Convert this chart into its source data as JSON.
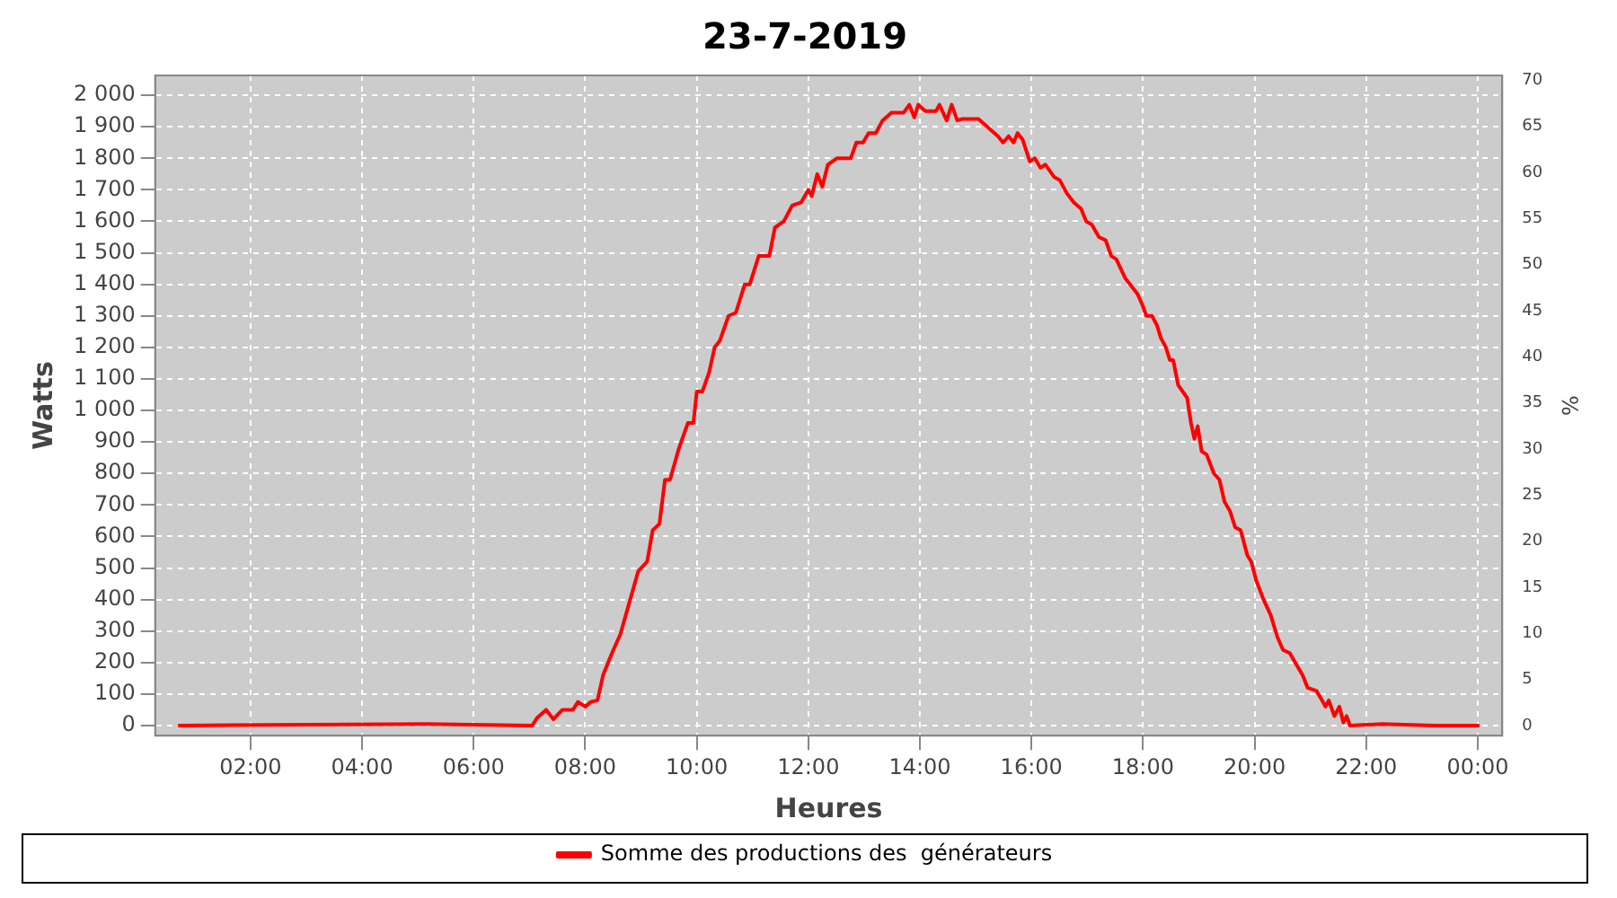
{
  "chart_data": {
    "type": "line",
    "title": "23-7-2019",
    "xlabel": "Heures",
    "ylabel": "Watts",
    "y2label": "%",
    "xlim": [
      0.29,
      24.44
    ],
    "xticks": [
      {
        "value": 2,
        "label": "02:00"
      },
      {
        "value": 4,
        "label": "04:00"
      },
      {
        "value": 6,
        "label": "06:00"
      },
      {
        "value": 8,
        "label": "08:00"
      },
      {
        "value": 10,
        "label": "10:00"
      },
      {
        "value": 12,
        "label": "12:00"
      },
      {
        "value": 14,
        "label": "14:00"
      },
      {
        "value": 16,
        "label": "16:00"
      },
      {
        "value": 18,
        "label": "18:00"
      },
      {
        "value": 20,
        "label": "20:00"
      },
      {
        "value": 22,
        "label": "22:00"
      },
      {
        "value": 24,
        "label": "00:00"
      }
    ],
    "ylim": [
      -32,
      2063
    ],
    "yticks": [
      0,
      100,
      200,
      300,
      400,
      500,
      600,
      700,
      800,
      900,
      {
        "value": 1000,
        "label": "1 000"
      },
      {
        "value": 1100,
        "label": "1 100"
      },
      {
        "value": 1200,
        "label": "1 200"
      },
      {
        "value": 1300,
        "label": "1 300"
      },
      {
        "value": 1400,
        "label": "1 400"
      },
      {
        "value": 1500,
        "label": "1 500"
      },
      {
        "value": 1600,
        "label": "1 600"
      },
      {
        "value": 1700,
        "label": "1 700"
      },
      {
        "value": 1800,
        "label": "1 800"
      },
      {
        "value": 1900,
        "label": "1 900"
      },
      {
        "value": 2000,
        "label": "2 000"
      }
    ],
    "y2lim": [
      -1.1,
      70.5
    ],
    "y2ticks": [
      0,
      5,
      10,
      15,
      20,
      25,
      30,
      35,
      40,
      45,
      50,
      55,
      60,
      65,
      70
    ],
    "grid": true,
    "legend": "bottom",
    "marker": "none",
    "line_style": "solid",
    "series": [
      {
        "name": "Somme des productions des  générateurs",
        "color": "#ff0000",
        "x": [
          0.7,
          5.14,
          7.05,
          7.14,
          7.3,
          7.43,
          7.59,
          7.78,
          7.87,
          8.0,
          8.1,
          8.22,
          8.32,
          8.48,
          8.63,
          8.79,
          8.95,
          9.11,
          9.21,
          9.33,
          9.43,
          9.52,
          9.68,
          9.84,
          9.94,
          10.0,
          10.1,
          10.22,
          10.32,
          10.41,
          10.57,
          10.7,
          10.86,
          10.95,
          11.11,
          11.3,
          11.4,
          11.56,
          11.71,
          11.87,
          12.0,
          12.06,
          12.16,
          12.25,
          12.35,
          12.51,
          12.76,
          12.86,
          12.98,
          13.08,
          13.21,
          13.33,
          13.49,
          13.71,
          13.81,
          13.9,
          13.97,
          14.1,
          14.29,
          14.35,
          14.48,
          14.57,
          14.67,
          14.76,
          15.05,
          15.24,
          15.4,
          15.49,
          15.59,
          15.68,
          15.75,
          15.84,
          15.97,
          16.06,
          16.16,
          16.25,
          16.41,
          16.51,
          16.63,
          16.76,
          16.89,
          16.98,
          17.08,
          17.21,
          17.33,
          17.43,
          17.52,
          17.68,
          17.9,
          18.0,
          18.06,
          18.16,
          18.25,
          18.32,
          18.41,
          18.48,
          18.54,
          18.63,
          18.79,
          18.86,
          18.92,
          18.98,
          19.05,
          19.14,
          19.27,
          19.37,
          19.46,
          19.56,
          19.65,
          19.75,
          19.87,
          19.94,
          20.03,
          20.16,
          20.29,
          20.41,
          20.51,
          20.63,
          20.76,
          20.86,
          20.95,
          21.11,
          21.21,
          21.27,
          21.33,
          21.43,
          21.52,
          21.59,
          21.65,
          21.71,
          22.29,
          23.24,
          24.03
        ],
        "values": [
          0,
          5,
          0,
          25,
          50,
          20,
          50,
          50,
          75,
          60,
          75,
          80,
          160,
          230,
          290,
          390,
          490,
          520,
          620,
          640,
          780,
          780,
          880,
          960,
          960,
          1060,
          1060,
          1120,
          1200,
          1220,
          1300,
          1310,
          1400,
          1400,
          1490,
          1490,
          1580,
          1600,
          1650,
          1660,
          1700,
          1680,
          1750,
          1710,
          1780,
          1800,
          1800,
          1850,
          1850,
          1880,
          1880,
          1920,
          1945,
          1945,
          1970,
          1930,
          1970,
          1950,
          1950,
          1970,
          1920,
          1970,
          1920,
          1925,
          1925,
          1895,
          1870,
          1850,
          1870,
          1850,
          1880,
          1860,
          1790,
          1800,
          1770,
          1780,
          1740,
          1730,
          1690,
          1660,
          1640,
          1600,
          1590,
          1550,
          1540,
          1490,
          1480,
          1420,
          1370,
          1330,
          1300,
          1300,
          1270,
          1230,
          1200,
          1160,
          1160,
          1080,
          1040,
          960,
          910,
          950,
          870,
          860,
          800,
          780,
          710,
          680,
          630,
          620,
          540,
          520,
          460,
          400,
          350,
          280,
          240,
          230,
          190,
          160,
          120,
          110,
          80,
          60,
          80,
          30,
          60,
          10,
          30,
          0,
          5,
          0,
          0
        ]
      }
    ]
  }
}
